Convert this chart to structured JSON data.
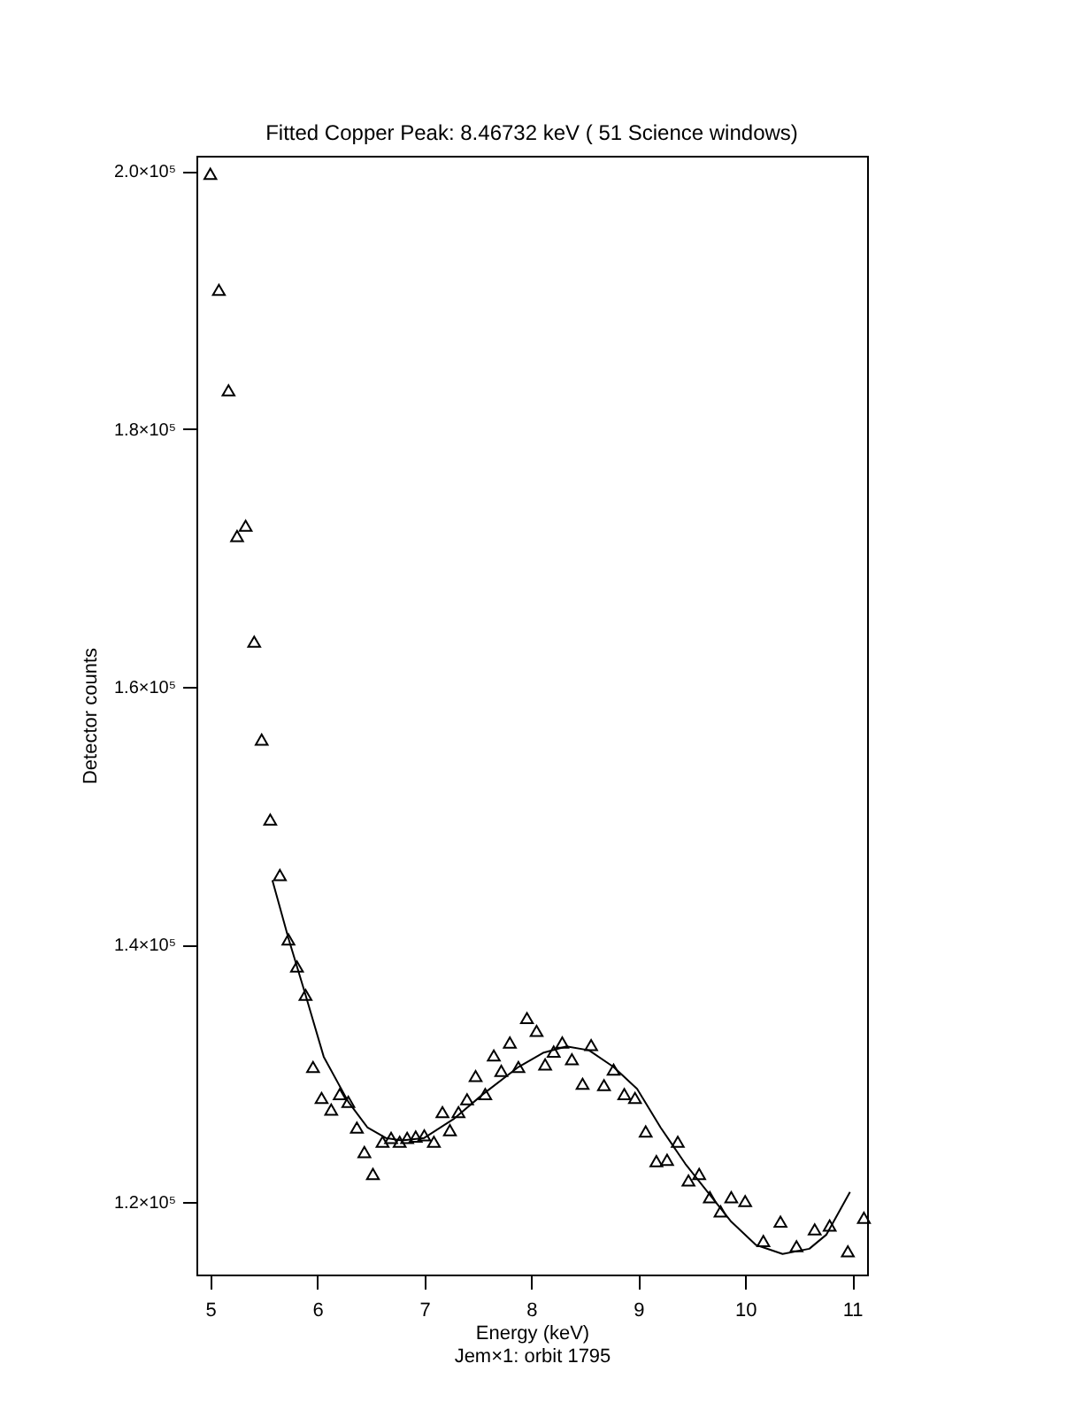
{
  "chart_data": {
    "type": "scatter",
    "title": "Fitted Copper Peak: 8.46732 keV ( 51 Science windows)",
    "xlabel": "Energy (keV)",
    "ylabel": "Detector counts",
    "annotations": [
      "Jem×1: orbit 1795"
    ],
    "xlim": [
      4.87,
      11.14
    ],
    "ylim": [
      114400,
      201200
    ],
    "xticks": [
      5,
      6,
      7,
      8,
      9,
      10,
      11
    ],
    "yticks": [
      {
        "value": 120000,
        "label": "1.2×10⁵"
      },
      {
        "value": 140000,
        "label": "1.4×10⁵"
      },
      {
        "value": 160000,
        "label": "1.6×10⁵"
      },
      {
        "value": 180000,
        "label": "1.8×10⁵"
      },
      {
        "value": 200000,
        "label": "2.0×10⁵"
      }
    ],
    "grid": false,
    "series": [
      {
        "marker": "triangle",
        "color": "#000000",
        "x": [
          5.0,
          5.08,
          5.17,
          5.25,
          5.33,
          5.41,
          5.48,
          5.56,
          5.65,
          5.73,
          5.81,
          5.89,
          5.96,
          6.04,
          6.13,
          6.21,
          6.29,
          6.37,
          6.44,
          6.52,
          6.61,
          6.69,
          6.77,
          6.84,
          6.92,
          7.0,
          7.09,
          7.17,
          7.24,
          7.32,
          7.4,
          7.48,
          7.57,
          7.65,
          7.72,
          7.8,
          7.88,
          7.96,
          8.05,
          8.13,
          8.21,
          8.29,
          8.38,
          8.48,
          8.56,
          8.68,
          8.77,
          8.87,
          8.97,
          9.07,
          9.17,
          9.27,
          9.37,
          9.47,
          9.57,
          9.67,
          9.77,
          9.87,
          10.0,
          10.17,
          10.33,
          10.48,
          10.65,
          10.79,
          10.96,
          11.11
        ],
        "values": [
          199800,
          190800,
          183000,
          171700,
          172500,
          163500,
          155900,
          149700,
          145400,
          140400,
          138300,
          136100,
          130500,
          128100,
          127200,
          128400,
          127800,
          125800,
          123900,
          122200,
          124700,
          125000,
          124700,
          125000,
          125100,
          125200,
          124700,
          127000,
          125600,
          127000,
          128000,
          129800,
          128400,
          131400,
          130200,
          132400,
          130500,
          134300,
          133300,
          130700,
          131700,
          132400,
          131100,
          129200,
          132200,
          129100,
          130300,
          128400,
          128100,
          125500,
          123200,
          123300,
          124700,
          121700,
          122200,
          120400,
          119300,
          120400,
          120100,
          117000,
          118500,
          116600,
          117900,
          118200,
          116200,
          118800
        ]
      },
      {
        "type": "line",
        "marker": "none",
        "line_style": "solid",
        "color": "#000000",
        "x": [
          5.58,
          5.73,
          5.89,
          6.06,
          6.29,
          6.47,
          6.64,
          6.79,
          7.0,
          7.28,
          7.55,
          7.88,
          8.11,
          8.33,
          8.54,
          8.77,
          8.99,
          9.21,
          9.44,
          9.65,
          9.87,
          10.1,
          10.35,
          10.6,
          10.76,
          10.98
        ],
        "values": [
          145000,
          140500,
          136100,
          131300,
          127800,
          125800,
          125000,
          124800,
          125000,
          126500,
          128400,
          130500,
          131600,
          132100,
          131800,
          130500,
          128800,
          125800,
          123000,
          120800,
          118500,
          116700,
          116000,
          116400,
          117500,
          120800
        ]
      }
    ]
  }
}
